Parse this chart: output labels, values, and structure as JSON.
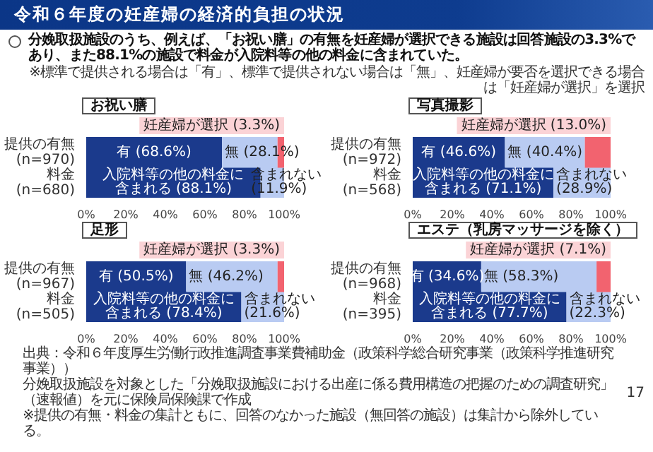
{
  "chart_data": [
    {
      "type": "other",
      "title": "令和６年度の妊産婦の経済的負担の状況",
      "subtitle": "分娩取扱施設のうち、例えば、「お祝い膳」の有無を妊産婦が選択できる施設は回答施設の3.3%であり、また88.1%の施設で料金が入院料等の他の料金に含まれていた。",
      "annotations": [
        "※標準で提供される場合は「有」、標準で提供されない場合は「無」、妊産婦が要否を選択できる場合は「妊産婦が選択」を選択"
      ]
    },
    {
      "type": "bar",
      "orientation": "horizontal",
      "stacked": true,
      "title": "お祝い膳",
      "categories": [
        "提供の有無\n(n=970)",
        "料金\n(n=680)"
      ],
      "series": [
        {
          "color": "#1b3a8c",
          "values": [
            68.6,
            88.1
          ],
          "value_labels": [
            "有 (68.6%)",
            "入院料等の他の料金に含まれる (88.1%)"
          ]
        },
        {
          "color": "#b9cbf2",
          "values": [
            28.1,
            11.9
          ],
          "value_labels": [
            "無 (28.1%)",
            "含まれない (11.9%)"
          ]
        },
        {
          "color": "#f2636f",
          "values": [
            3.3,
            null
          ],
          "value_labels": [
            "妊産婦が選択 (3.3%)",
            null
          ]
        }
      ],
      "xlim": [
        0,
        100
      ],
      "xticks": [
        {
          "value": 0,
          "label": "0%"
        },
        {
          "value": 20,
          "label": "20%"
        },
        {
          "value": 40,
          "label": "40%"
        },
        {
          "value": 60,
          "label": "60%"
        },
        {
          "value": 80,
          "label": "80%"
        },
        {
          "value": 100,
          "label": "100%"
        }
      ]
    },
    {
      "type": "bar",
      "orientation": "horizontal",
      "stacked": true,
      "title": "写真撮影",
      "categories": [
        "提供の有無\n(n=972)",
        "料金\n(n=568)"
      ],
      "series": [
        {
          "color": "#1b3a8c",
          "values": [
            46.6,
            71.1
          ],
          "value_labels": [
            "有 (46.6%)",
            "入院料等の他の料金に含まれる (71.1%)"
          ]
        },
        {
          "color": "#b9cbf2",
          "values": [
            40.4,
            28.9
          ],
          "value_labels": [
            "無 (40.4%)",
            "含まれない (28.9%)"
          ]
        },
        {
          "color": "#f2636f",
          "values": [
            13.0,
            null
          ],
          "value_labels": [
            "妊産婦が選択 (13.0%)",
            null
          ]
        }
      ],
      "xlim": [
        0,
        100
      ],
      "xticks": [
        {
          "value": 0,
          "label": "0%"
        },
        {
          "value": 20,
          "label": "20%"
        },
        {
          "value": 40,
          "label": "40%"
        },
        {
          "value": 60,
          "label": "60%"
        },
        {
          "value": 80,
          "label": "80%"
        },
        {
          "value": 100,
          "label": "100%"
        }
      ]
    },
    {
      "type": "bar",
      "orientation": "horizontal",
      "stacked": true,
      "title": "足形",
      "categories": [
        "提供の有無\n(n=967)",
        "料金\n(n=505)"
      ],
      "series": [
        {
          "color": "#1b3a8c",
          "values": [
            50.5,
            78.4
          ],
          "value_labels": [
            "有 (50.5%)",
            "入院料等の他の料金に含まれる (78.4%)"
          ]
        },
        {
          "color": "#b9cbf2",
          "values": [
            46.2,
            21.6
          ],
          "value_labels": [
            "無 (46.2%)",
            "含まれない (21.6%)"
          ]
        },
        {
          "color": "#f2636f",
          "values": [
            3.3,
            null
          ],
          "value_labels": [
            "妊産婦が選択 (3.3%)",
            null
          ]
        }
      ],
      "xlim": [
        0,
        100
      ],
      "xticks": [
        {
          "value": 0,
          "label": "0%"
        },
        {
          "value": 20,
          "label": "20%"
        },
        {
          "value": 40,
          "label": "40%"
        },
        {
          "value": 60,
          "label": "60%"
        },
        {
          "value": 80,
          "label": "80%"
        },
        {
          "value": 100,
          "label": "100%"
        }
      ]
    },
    {
      "type": "bar",
      "orientation": "horizontal",
      "stacked": true,
      "title": "エステ（乳房マッサージを除く）",
      "categories": [
        "提供の有無\n(n=968)",
        "料金\n(n=395)"
      ],
      "series": [
        {
          "color": "#1b3a8c",
          "values": [
            34.6,
            77.7
          ],
          "value_labels": [
            "有 (34.6%)",
            "入院料等の他の料金に含まれる (77.7%)"
          ]
        },
        {
          "color": "#b9cbf2",
          "values": [
            58.3,
            22.3
          ],
          "value_labels": [
            "無 (58.3%)",
            "含まれない (22.3%)"
          ]
        },
        {
          "color": "#f2636f",
          "values": [
            7.1,
            null
          ],
          "value_labels": [
            "妊産婦が選択 (7.1%)",
            null
          ]
        }
      ],
      "xlim": [
        0,
        100
      ],
      "xticks": [
        {
          "value": 0,
          "label": "0%"
        },
        {
          "value": 20,
          "label": "20%"
        },
        {
          "value": 40,
          "label": "40%"
        },
        {
          "value": 60,
          "label": "60%"
        },
        {
          "value": 80,
          "label": "80%"
        },
        {
          "value": 100,
          "label": "100%"
        }
      ]
    },
    {
      "type": "other",
      "annotations": [
        "出典：令和６年度厚生労働行政推進調査事業費補助金（政策科学総合研究事業（政策科学推進研究事業））",
        "分娩取扱施設を対象とした「分娩取扱施設における出産に係る費用構造の把握のための調査研究」（速報値）を元に保険局保険課で作成",
        "※提供の有無・料金の集計ともに、回答のなかった施設（無回答の施設）は集計から除外している。",
        "17"
      ]
    }
  ]
}
